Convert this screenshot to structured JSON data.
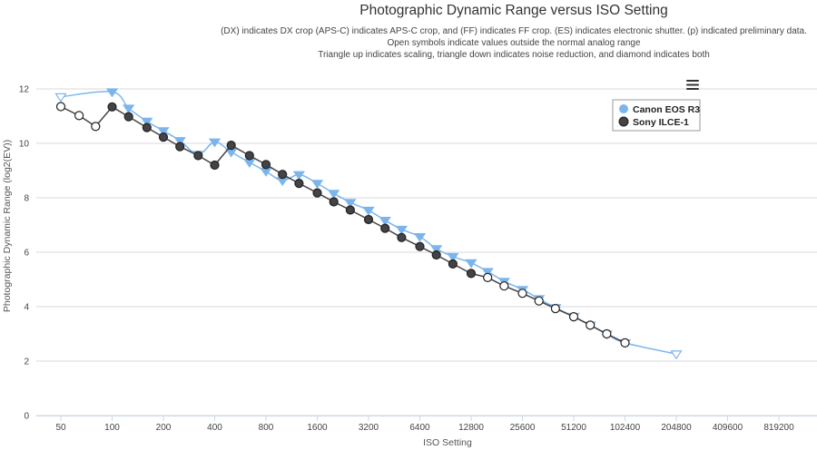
{
  "title": "Photographic Dynamic Range versus ISO Setting",
  "subtitle_lines": [
    "(DX) indicates DX crop (APS-C) indicates APS-C crop, and (FF) indicates FF crop. (ES) indicates electronic shutter. (p) indicated preliminary data.",
    "Open symbols indicate values outside the normal analog range",
    "Triangle up indicates scaling, triangle down indicates noise reduction, and diamond indicates both"
  ],
  "menu_icon": "hamburger-menu-icon",
  "chart_data": {
    "type": "line",
    "title": "Photographic Dynamic Range versus ISO Setting",
    "xlabel": "ISO Setting",
    "ylabel": "Photographic Dynamic Range (log2(EV))",
    "x_scale": "log2",
    "xlim": [
      40,
      1100000
    ],
    "ylim": [
      0,
      13
    ],
    "x_ticks": [
      50,
      100,
      200,
      400,
      800,
      1600,
      3200,
      6400,
      12800,
      25600,
      51200,
      102400,
      204800,
      409600,
      819200
    ],
    "x_tick_labels": [
      "50",
      "100",
      "200",
      "400",
      "800",
      "1600",
      "3200",
      "6400",
      "12800",
      "25600",
      "51200",
      "102400",
      "204800",
      "409600",
      "819200"
    ],
    "y_ticks": [
      0,
      2,
      4,
      6,
      8,
      10,
      12
    ],
    "y_tick_labels": [
      "0",
      "2",
      "4",
      "6",
      "8",
      "10",
      "12"
    ],
    "grid": true,
    "legend_position": "top-right",
    "series": [
      {
        "name": "Canon EOS R3",
        "color": "#7cb5ec",
        "marker": "triangle-down",
        "points": [
          {
            "x": 50,
            "y": 11.71,
            "open": true
          },
          {
            "x": 100,
            "y": 11.89,
            "open": false
          },
          {
            "x": 125,
            "y": 11.29,
            "open": false
          },
          {
            "x": 160,
            "y": 10.81,
            "open": false
          },
          {
            "x": 200,
            "y": 10.46,
            "open": false
          },
          {
            "x": 250,
            "y": 10.1,
            "open": false
          },
          {
            "x": 320,
            "y": 9.59,
            "open": false
          },
          {
            "x": 400,
            "y": 10.05,
            "open": false
          },
          {
            "x": 500,
            "y": 9.68,
            "open": false
          },
          {
            "x": 640,
            "y": 9.3,
            "open": false
          },
          {
            "x": 800,
            "y": 8.97,
            "open": false
          },
          {
            "x": 1000,
            "y": 8.63,
            "open": false
          },
          {
            "x": 1250,
            "y": 8.85,
            "open": false
          },
          {
            "x": 1600,
            "y": 8.53,
            "open": false
          },
          {
            "x": 2000,
            "y": 8.16,
            "open": false
          },
          {
            "x": 2500,
            "y": 7.83,
            "open": false
          },
          {
            "x": 3200,
            "y": 7.54,
            "open": false
          },
          {
            "x": 4000,
            "y": 7.17,
            "open": false
          },
          {
            "x": 5000,
            "y": 6.84,
            "open": false
          },
          {
            "x": 6400,
            "y": 6.57,
            "open": false
          },
          {
            "x": 8000,
            "y": 6.13,
            "open": false
          },
          {
            "x": 10000,
            "y": 5.84,
            "open": false
          },
          {
            "x": 12800,
            "y": 5.61,
            "open": false
          },
          {
            "x": 16000,
            "y": 5.29,
            "open": false
          },
          {
            "x": 20000,
            "y": 4.93,
            "open": false
          },
          {
            "x": 25600,
            "y": 4.63,
            "open": false
          },
          {
            "x": 32000,
            "y": 4.29,
            "open": false
          },
          {
            "x": 40000,
            "y": 3.96,
            "open": false
          },
          {
            "x": 51200,
            "y": 3.64,
            "open": true
          },
          {
            "x": 64000,
            "y": 3.32,
            "open": true
          },
          {
            "x": 80000,
            "y": 2.99,
            "open": true
          },
          {
            "x": 102400,
            "y": 2.67,
            "open": true
          },
          {
            "x": 204800,
            "y": 2.26,
            "open": true
          }
        ]
      },
      {
        "name": "Sony ILCE-1",
        "color": "#434348",
        "marker": "circle",
        "points": [
          {
            "x": 50,
            "y": 11.35,
            "open": true
          },
          {
            "x": 64,
            "y": 11.02,
            "open": true
          },
          {
            "x": 80,
            "y": 10.62,
            "open": true
          },
          {
            "x": 100,
            "y": 11.34,
            "open": false
          },
          {
            "x": 125,
            "y": 10.98,
            "open": false
          },
          {
            "x": 160,
            "y": 10.58,
            "open": false
          },
          {
            "x": 200,
            "y": 10.23,
            "open": false
          },
          {
            "x": 250,
            "y": 9.88,
            "open": false
          },
          {
            "x": 320,
            "y": 9.55,
            "open": false
          },
          {
            "x": 400,
            "y": 9.2,
            "open": false
          },
          {
            "x": 500,
            "y": 9.93,
            "open": false
          },
          {
            "x": 640,
            "y": 9.55,
            "open": false
          },
          {
            "x": 800,
            "y": 9.22,
            "open": false
          },
          {
            "x": 1000,
            "y": 8.86,
            "open": false
          },
          {
            "x": 1250,
            "y": 8.53,
            "open": false
          },
          {
            "x": 1600,
            "y": 8.18,
            "open": false
          },
          {
            "x": 2000,
            "y": 7.85,
            "open": false
          },
          {
            "x": 2500,
            "y": 7.55,
            "open": false
          },
          {
            "x": 3200,
            "y": 7.2,
            "open": false
          },
          {
            "x": 4000,
            "y": 6.88,
            "open": false
          },
          {
            "x": 5000,
            "y": 6.54,
            "open": false
          },
          {
            "x": 6400,
            "y": 6.21,
            "open": false
          },
          {
            "x": 8000,
            "y": 5.9,
            "open": false
          },
          {
            "x": 10000,
            "y": 5.57,
            "open": false
          },
          {
            "x": 12800,
            "y": 5.22,
            "open": false
          },
          {
            "x": 16000,
            "y": 5.07,
            "open": true
          },
          {
            "x": 20000,
            "y": 4.76,
            "open": true
          },
          {
            "x": 25600,
            "y": 4.49,
            "open": true
          },
          {
            "x": 32000,
            "y": 4.21,
            "open": true
          },
          {
            "x": 40000,
            "y": 3.93,
            "open": true
          },
          {
            "x": 51200,
            "y": 3.63,
            "open": true
          },
          {
            "x": 64000,
            "y": 3.32,
            "open": true
          },
          {
            "x": 80000,
            "y": 3.0,
            "open": true
          },
          {
            "x": 102400,
            "y": 2.67,
            "open": true
          }
        ]
      }
    ]
  }
}
